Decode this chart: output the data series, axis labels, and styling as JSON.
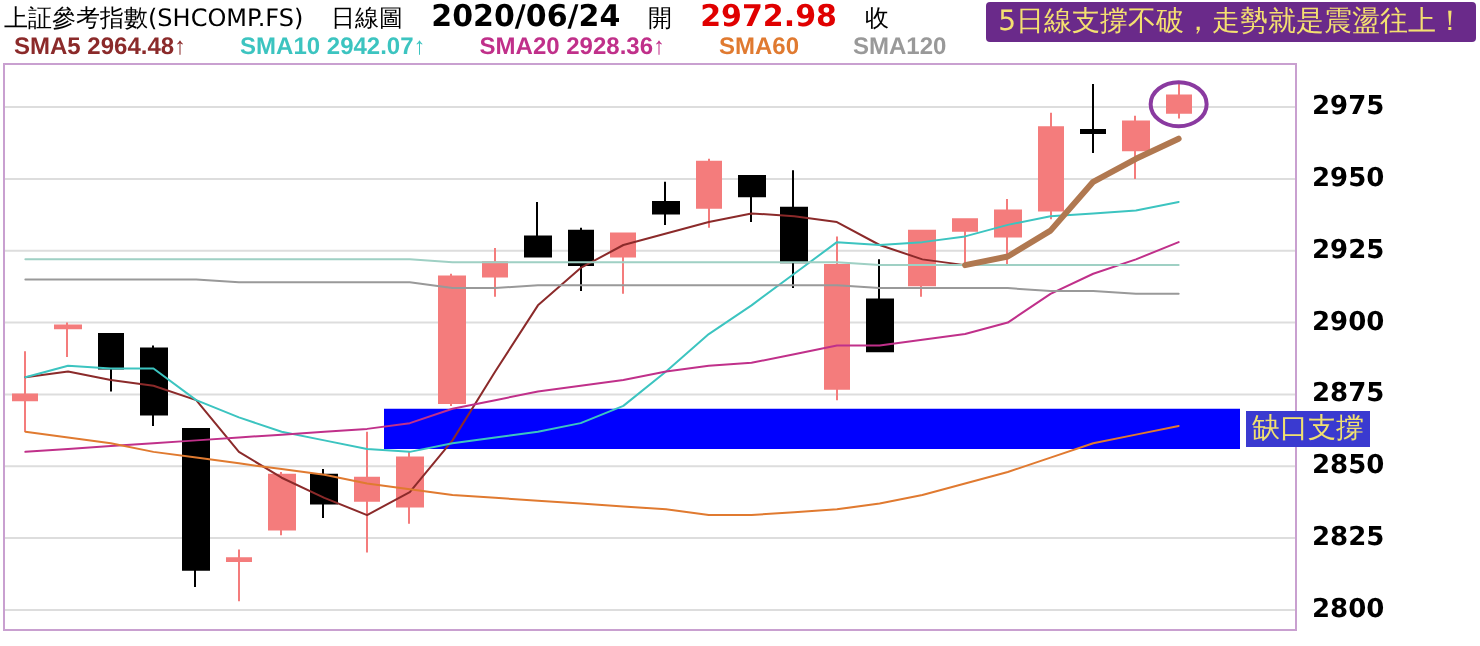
{
  "chart_data": {
    "type": "candlestick",
    "title": "上証參考指數(SHCOMP.FS)",
    "annotations": [
      "日線圖",
      "2020/06/24",
      "開",
      "2972.98",
      "收",
      "5日線支撐不破，走勢就是震盪往上！"
    ],
    "categories": [
      null,
      null,
      null,
      null,
      null,
      null,
      null,
      null,
      null,
      null,
      null,
      null,
      null,
      null,
      null,
      null,
      null,
      null,
      null,
      null,
      null,
      null,
      null,
      null,
      null,
      null,
      null,
      null
    ],
    "ohlc": [
      [
        2873,
        2890,
        2862,
        2875
      ],
      [
        2898,
        2900,
        2888,
        2899
      ],
      [
        2896,
        2896,
        2876,
        2884
      ],
      [
        2891,
        2892,
        2864,
        2868
      ],
      [
        2863,
        2863,
        2808,
        2814
      ],
      [
        2817,
        2821,
        2803,
        2818
      ],
      [
        2828,
        2848,
        2826,
        2847
      ],
      [
        2847,
        2849,
        2832,
        2837
      ],
      [
        2838,
        2862,
        2820,
        2846
      ],
      [
        2836,
        2855,
        2830,
        2853
      ],
      [
        2872,
        2917,
        2871,
        2916
      ],
      [
        2916,
        2926,
        2909,
        2921
      ],
      [
        2930,
        2942,
        2923,
        2923
      ],
      [
        2932,
        2933,
        2911,
        2920
      ],
      [
        2923,
        2931,
        2910,
        2931
      ],
      [
        2942,
        2949,
        2934,
        2938
      ],
      [
        2940,
        2957,
        2933,
        2956
      ],
      [
        2951,
        2951,
        2935,
        2944
      ],
      [
        2940,
        2953,
        2912,
        2921
      ],
      [
        2877,
        2930,
        2873,
        2920
      ],
      [
        2908,
        2922,
        2890,
        2890
      ],
      [
        2913,
        2932,
        2909,
        2932
      ],
      [
        2932,
        2936,
        2919,
        2936
      ],
      [
        2930,
        2943,
        2920,
        2939
      ],
      [
        2939,
        2973,
        2936,
        2968
      ],
      [
        2967,
        2983,
        2959,
        2966
      ],
      [
        2960,
        2972,
        2950,
        2970
      ],
      [
        2973,
        2983,
        2971,
        2979
      ]
    ],
    "colors": [
      "#f47c7c",
      "#f47c7c",
      "#000000",
      "#000000",
      "#000000",
      "#f47c7c",
      "#f47c7c",
      "#000000",
      "#f47c7c",
      "#f47c7c",
      "#f47c7c",
      "#f47c7c",
      "#000000",
      "#000000",
      "#f47c7c",
      "#000000",
      "#f47c7c",
      "#000000",
      "#000000",
      "#f47c7c",
      "#000000",
      "#f47c7c",
      "#f47c7c",
      "#f47c7c",
      "#f47c7c",
      "#000000",
      "#f47c7c",
      "#f47c7c"
    ],
    "series": [
      {
        "type": "line",
        "name": "SMA5 2964.48↑",
        "color": "#8b2a2a",
        "values": [
          2881,
          2883,
          2880,
          2878,
          2873,
          2855,
          2846,
          2839,
          2833,
          2841,
          2859,
          2883,
          2906,
          2919,
          2927,
          2931,
          2935,
          2938,
          2937,
          2935,
          2927,
          2922,
          2920,
          2923,
          2932,
          2949,
          2957,
          2964
        ]
      },
      {
        "type": "line",
        "name": "SMA10 2942.07↑",
        "color": "#3cc4c0",
        "values": [
          2881,
          2885,
          2884,
          2884,
          2873,
          2867,
          2862,
          2859,
          2856,
          2855,
          2858,
          2860,
          2862,
          2865,
          2871,
          2883,
          2896,
          2906,
          2917,
          2928,
          2927,
          2928,
          2930,
          2934,
          2937,
          2938,
          2939,
          2942
        ]
      },
      {
        "type": "line",
        "name": "SMA20 2928.36↑",
        "color": "#c0308a",
        "values": [
          2855,
          2856,
          2857,
          2858,
          2859,
          2860,
          2861,
          2862,
          2863,
          2865,
          2870,
          2873,
          2876,
          2878,
          2880,
          2883,
          2885,
          2886,
          2889,
          2892,
          2892,
          2894,
          2896,
          2900,
          2910,
          2917,
          2922,
          2928
        ]
      },
      {
        "type": "line",
        "name": "SMA60",
        "color": "#e07a30",
        "values": [
          2862,
          2860,
          2858,
          2855,
          2853,
          2851,
          2849,
          2847,
          2844,
          2842,
          2840,
          2839,
          2838,
          2837,
          2836,
          2835,
          2833,
          2833,
          2834,
          2835,
          2837,
          2840,
          2844,
          2848,
          2853,
          2858,
          2861,
          2864
        ]
      },
      {
        "type": "line",
        "name": "SMA120",
        "color": "#999999",
        "values": [
          2915,
          2915,
          2915,
          2915,
          2915,
          2914,
          2914,
          2914,
          2914,
          2914,
          2912,
          2912,
          2913,
          2913,
          2913,
          2913,
          2913,
          2913,
          2913,
          2913,
          2912,
          2912,
          2912,
          2912,
          2911,
          2911,
          2910,
          2910
        ]
      },
      {
        "type": "line",
        "color": "#9fd0c4",
        "values": [
          2922,
          2922,
          2922,
          2922,
          2922,
          2922,
          2922,
          2922,
          2922,
          2922,
          2921,
          2921,
          2921,
          2921,
          2921,
          2921,
          2921,
          2921,
          2921,
          2921,
          2920,
          2920,
          2920,
          2920,
          2920,
          2920,
          2920,
          2920
        ]
      },
      {
        "type": "line",
        "color": "#b07850",
        "values": [
          null,
          null,
          null,
          null,
          null,
          null,
          null,
          null,
          null,
          null,
          null,
          null,
          null,
          null,
          null,
          null,
          null,
          null,
          null,
          null,
          null,
          null,
          2920,
          2923,
          2932,
          2949,
          2957,
          2964
        ]
      }
    ],
    "ylim": [
      2793,
      2990
    ],
    "yticks": [
      2800,
      2825,
      2850,
      2875,
      2900,
      2925,
      2950,
      2975
    ],
    "grid": "y",
    "legend": "top",
    "marker": "none",
    "line_style": "solid",
    "bands": [
      {
        "axis": "y",
        "from": 2856,
        "to": 2870,
        "label": "缺口支撐",
        "color": "#0000ff"
      }
    ]
  }
}
